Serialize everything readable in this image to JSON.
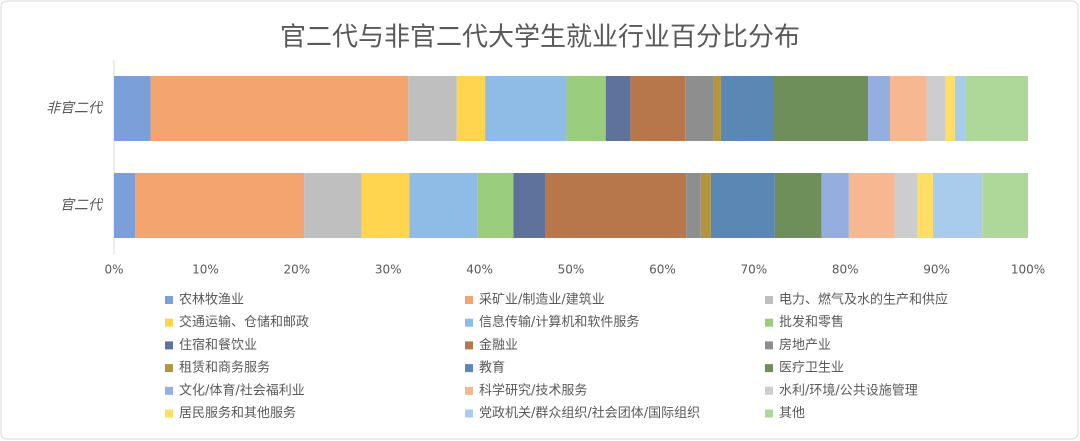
{
  "chart_data": {
    "type": "stacked_bar_horizontal",
    "title": "官二代与非官二代大学生就业行业百分比分布",
    "categories": [
      "非官二代",
      "官二代"
    ],
    "series": [
      {
        "name": "农林牧渔业",
        "color": "#7b9fd9",
        "values": [
          4.0,
          2.3
        ]
      },
      {
        "name": "采矿业/制造业/建筑业",
        "color": "#f4a46e",
        "values": [
          28.2,
          18.5
        ]
      },
      {
        "name": "电力、燃气及水的生产和供应",
        "color": "#bfbfbf",
        "values": [
          5.3,
          6.3
        ]
      },
      {
        "name": "交通运输、仓储和邮政",
        "color": "#ffd54f",
        "values": [
          3.1,
          5.2
        ]
      },
      {
        "name": "信息传输/计算机和软件服务",
        "color": "#8fbce6",
        "values": [
          8.9,
          7.5
        ]
      },
      {
        "name": "批发和零售",
        "color": "#9bcd7f",
        "values": [
          4.3,
          3.9
        ]
      },
      {
        "name": "住宿和餐饮业",
        "color": "#5f729b",
        "values": [
          2.7,
          3.5
        ]
      },
      {
        "name": "金融业",
        "color": "#b8774b",
        "values": [
          6.0,
          15.4
        ]
      },
      {
        "name": "房地产业",
        "color": "#8e8e8e",
        "values": [
          3.1,
          1.6
        ]
      },
      {
        "name": "租赁和商务服务",
        "color": "#b3943f",
        "values": [
          0.8,
          1.1
        ]
      },
      {
        "name": "教育",
        "color": "#5b87b4",
        "values": [
          5.7,
          7.0
        ]
      },
      {
        "name": "医疗卫生业",
        "color": "#6e8f5a",
        "values": [
          10.4,
          5.1
        ]
      },
      {
        "name": "文化/体育/社会福利业",
        "color": "#94aee0",
        "values": [
          2.4,
          3.0
        ]
      },
      {
        "name": "科学研究/技术服务",
        "color": "#f5b891",
        "values": [
          4.0,
          5.0
        ]
      },
      {
        "name": "水利/环境/公共设施管理",
        "color": "#cdcdcd",
        "values": [
          2.1,
          2.5
        ]
      },
      {
        "name": "居民服务和其他服务",
        "color": "#ffde66",
        "values": [
          1.0,
          1.7
        ]
      },
      {
        "name": "党政机关/群众组织/社会团体/国际组织",
        "color": "#a9cbec",
        "values": [
          1.2,
          5.4
        ]
      },
      {
        "name": "其他",
        "color": "#aed79a",
        "values": [
          6.8,
          5.0
        ]
      }
    ],
    "xlim": [
      0,
      100
    ],
    "xticks": [
      {
        "value": 0,
        "label": "0%"
      },
      {
        "value": 10,
        "label": "10%"
      },
      {
        "value": 20,
        "label": "20%"
      },
      {
        "value": 30,
        "label": "30%"
      },
      {
        "value": 40,
        "label": "40%"
      },
      {
        "value": 50,
        "label": "50%"
      },
      {
        "value": 60,
        "label": "60%"
      },
      {
        "value": 70,
        "label": "70%"
      },
      {
        "value": 80,
        "label": "80%"
      },
      {
        "value": 90,
        "label": "90%"
      },
      {
        "value": 100,
        "label": "100%"
      }
    ],
    "grid": false
  }
}
